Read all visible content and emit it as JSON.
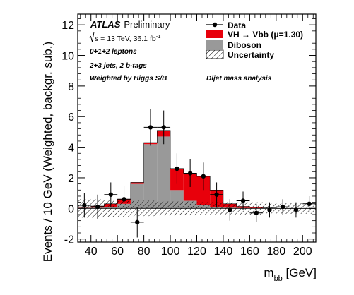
{
  "chart_data": {
    "type": "bar",
    "experiment": "ATLAS",
    "status": "Preliminary",
    "energy_line": {
      "sqrt_s": "s",
      "rest": " = 13 TeV, 36.1 fb",
      "superscript": "-1"
    },
    "annotations": {
      "channels": "0+1+2 leptons",
      "jets": "2+3 jets, 2 b-tags",
      "weighting": "Weighted by Higgs S/B",
      "analysis": "Dijet mass analysis"
    },
    "xlabel": {
      "main": "m",
      "sub": "bb",
      "unit": " [GeV]"
    },
    "ylabel": "Events / 10 GeV (Weighted, backgr. sub.)",
    "xlim": [
      30,
      210
    ],
    "ylim": [
      -2.2,
      12.7
    ],
    "xticks": [
      40,
      60,
      80,
      100,
      120,
      140,
      160,
      180,
      200
    ],
    "yticks": [
      -2,
      0,
      2,
      4,
      6,
      8,
      10,
      12
    ],
    "bin_edges": [
      30,
      40,
      50,
      60,
      70,
      80,
      90,
      100,
      110,
      120,
      130,
      140,
      150,
      160,
      170,
      180,
      190,
      200,
      210
    ],
    "series": [
      {
        "name": "Diboson",
        "color": "#999999",
        "values": [
          0.05,
          0.05,
          0.1,
          0.3,
          1.6,
          4.2,
          4.7,
          1.2,
          0.5,
          0.2,
          0.1,
          0.05,
          0.03,
          0.02,
          0.01,
          0.0,
          0.0,
          0.0
        ]
      },
      {
        "name": "VH → Vbb (μ=1.30)",
        "legend_main": "VH ",
        "legend_arrow": "→",
        "legend_rest": " Vbb (μ=1.30)",
        "color": "#e8000b",
        "values": [
          0.05,
          0.1,
          0.2,
          0.3,
          0.1,
          0.1,
          0.4,
          1.4,
          1.8,
          1.9,
          1.1,
          0.25,
          0.1,
          0.05,
          0.02,
          0.0,
          0.0,
          0.0
        ]
      }
    ],
    "data": {
      "name": "Data",
      "x": [
        35,
        45,
        55,
        65,
        75,
        85,
        95,
        105,
        115,
        125,
        135,
        145,
        155,
        165,
        175,
        185,
        195,
        205
      ],
      "y": [
        0.2,
        0.1,
        0.9,
        0.6,
        -0.9,
        5.3,
        5.3,
        2.6,
        2.3,
        2.1,
        0.9,
        -0.1,
        0.5,
        -0.3,
        -0.1,
        0.1,
        -0.1,
        0.3
      ],
      "err": [
        0.8,
        0.8,
        0.8,
        0.9,
        1.0,
        1.2,
        1.1,
        1.0,
        0.9,
        0.9,
        0.8,
        0.7,
        0.6,
        0.6,
        0.5,
        0.5,
        0.5,
        0.5
      ]
    },
    "uncertainty": {
      "name": "Uncertainty",
      "half_width": [
        0.6,
        0.6,
        0.55,
        0.55,
        0.5,
        0.5,
        0.45,
        0.45,
        0.45,
        0.4,
        0.4,
        0.4,
        0.4,
        0.4,
        0.35,
        0.35,
        0.35,
        0.35
      ]
    },
    "legend_position": "top-right"
  }
}
